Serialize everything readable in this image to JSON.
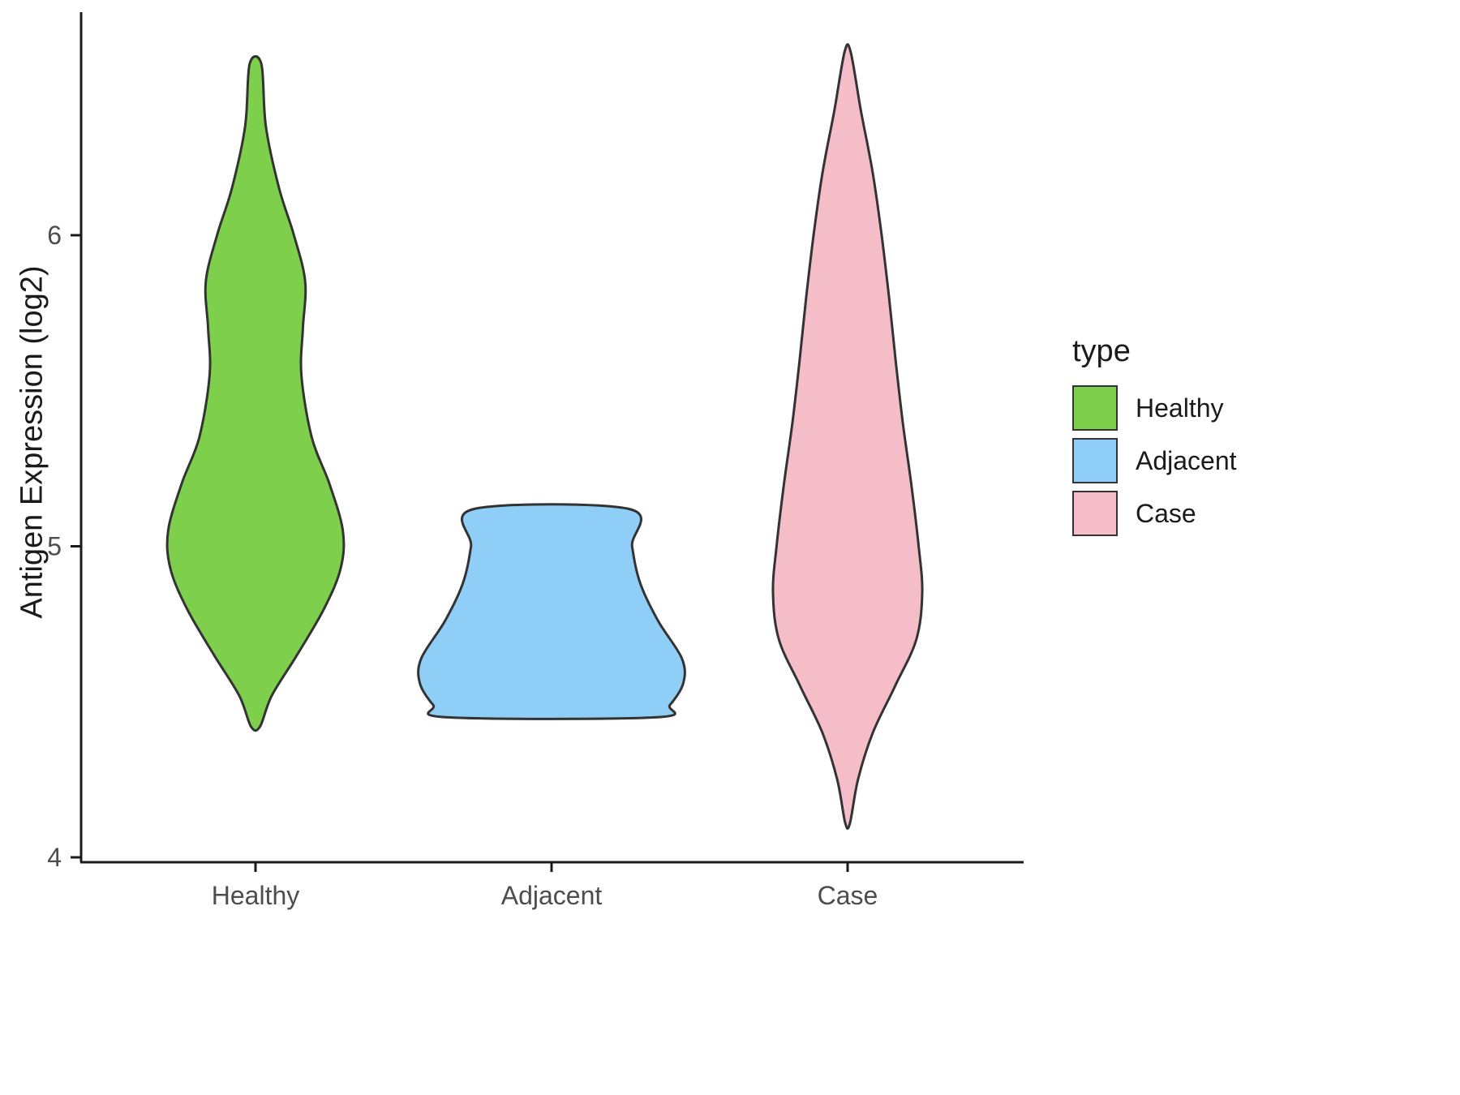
{
  "chart_data": {
    "type": "violin",
    "title": "",
    "xlabel": "",
    "ylabel": "Antigen Expression (log2)",
    "ylim": [
      4,
      6.7
    ],
    "yticks": [
      4,
      5,
      6
    ],
    "categories": [
      "Healthy",
      "Adjacent",
      "Case"
    ],
    "grid": false,
    "stroke_color": "#333333",
    "axis_color": "#1a1a1a",
    "tick_label_color": "#4d4d4d",
    "series": [
      {
        "name": "Healthy",
        "fill": "#7ED04C",
        "profile": [
          [
            6.55,
            0.02
          ],
          [
            6.35,
            0.035
          ],
          [
            6.15,
            0.08
          ],
          [
            6.0,
            0.13
          ],
          [
            5.85,
            0.168
          ],
          [
            5.7,
            0.16
          ],
          [
            5.55,
            0.155
          ],
          [
            5.35,
            0.19
          ],
          [
            5.2,
            0.25
          ],
          [
            5.05,
            0.295
          ],
          [
            4.93,
            0.288
          ],
          [
            4.8,
            0.232
          ],
          [
            4.65,
            0.14
          ],
          [
            4.52,
            0.055
          ],
          [
            4.42,
            0.015
          ]
        ]
      },
      {
        "name": "Adjacent",
        "fill": "#8FCEF6",
        "profile": [
          [
            5.12,
            0.262
          ],
          [
            5.0,
            0.272
          ],
          [
            4.88,
            0.3
          ],
          [
            4.76,
            0.36
          ],
          [
            4.64,
            0.44
          ],
          [
            4.56,
            0.445
          ],
          [
            4.49,
            0.4
          ],
          [
            4.45,
            0.35
          ]
        ]
      },
      {
        "name": "Case",
        "fill": "#F4BDC8",
        "profile": [
          [
            6.59,
            0.01
          ],
          [
            6.4,
            0.045
          ],
          [
            6.2,
            0.085
          ],
          [
            6.0,
            0.115
          ],
          [
            5.8,
            0.14
          ],
          [
            5.6,
            0.162
          ],
          [
            5.4,
            0.186
          ],
          [
            5.2,
            0.215
          ],
          [
            5.0,
            0.24
          ],
          [
            4.85,
            0.252
          ],
          [
            4.7,
            0.232
          ],
          [
            4.55,
            0.16
          ],
          [
            4.4,
            0.085
          ],
          [
            4.25,
            0.035
          ],
          [
            4.11,
            0.008
          ]
        ]
      }
    ],
    "legend": {
      "title": "type",
      "position": "right",
      "entries": [
        {
          "label": "Healthy",
          "color": "#7ED04C"
        },
        {
          "label": "Adjacent",
          "color": "#8FCEF6"
        },
        {
          "label": "Case",
          "color": "#F4BDC8"
        }
      ]
    }
  }
}
